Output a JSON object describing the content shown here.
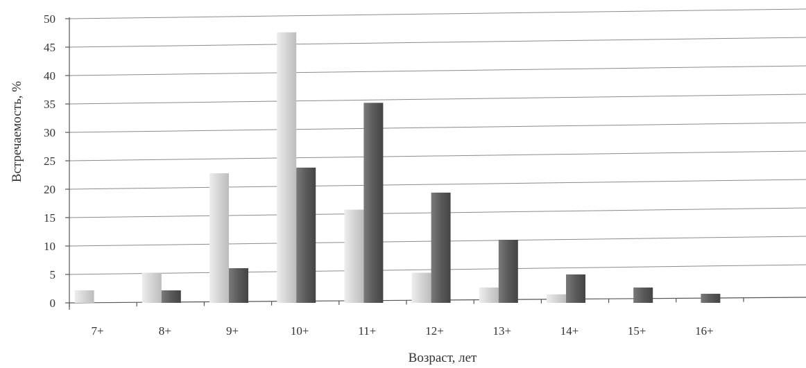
{
  "chart_data": {
    "type": "bar",
    "categories": [
      "7+",
      "8+",
      "9+",
      "10+",
      "11+",
      "12+",
      "13+",
      "14+",
      "15+",
      "16+"
    ],
    "series": [
      {
        "values": [
          2.2,
          5.3,
          22.8,
          47.6,
          16.4,
          5.3,
          2.7,
          1.5,
          0,
          0
        ],
        "color": "#d6d6d6"
      },
      {
        "values": [
          0,
          2.2,
          6.1,
          23.8,
          35.2,
          19.4,
          11.1,
          5.0,
          2.7,
          1.6
        ],
        "color": "#5e5e5e"
      }
    ],
    "xlabel": "Возраст, лет",
    "ylabel": "Встречаемость, %",
    "ylim": [
      0,
      50
    ],
    "yticks": [
      0,
      5,
      10,
      15,
      20,
      25,
      30,
      35,
      40,
      45,
      50
    ],
    "grid": true
  }
}
